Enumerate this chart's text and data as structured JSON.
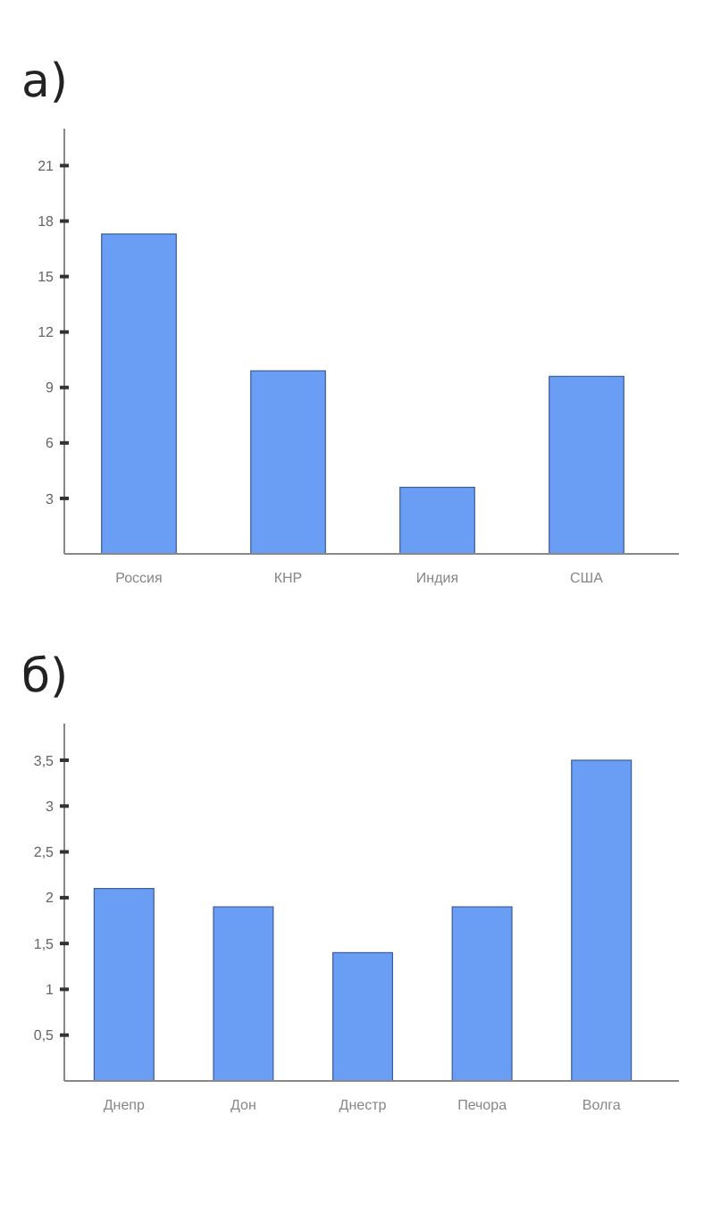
{
  "chart_data": [
    {
      "type": "bar",
      "title": "а)",
      "categories": [
        "Россия",
        "КНР",
        "Индия",
        "США"
      ],
      "values": [
        17.3,
        9.9,
        3.6,
        9.6
      ],
      "color": "#6a9ef5",
      "ylim": [
        0,
        23
      ],
      "yticks": [
        3,
        6,
        9,
        12,
        15,
        18,
        21
      ],
      "grid": false
    },
    {
      "type": "bar",
      "title": "б)",
      "categories": [
        "Днепр",
        "Дон",
        "Днестр",
        "Печора",
        "Волга"
      ],
      "values": [
        2.1,
        1.9,
        1.4,
        1.9,
        3.5
      ],
      "color": "#6a9ef5",
      "ylim": [
        0,
        3.9
      ],
      "yticks": [
        {
          "value": 0.5,
          "label": "0,5"
        },
        1,
        {
          "value": 1.5,
          "label": "1,5"
        },
        2,
        {
          "value": 2.5,
          "label": "2,5"
        },
        3,
        {
          "value": 3.5,
          "label": "3,5"
        }
      ],
      "grid": false
    }
  ]
}
